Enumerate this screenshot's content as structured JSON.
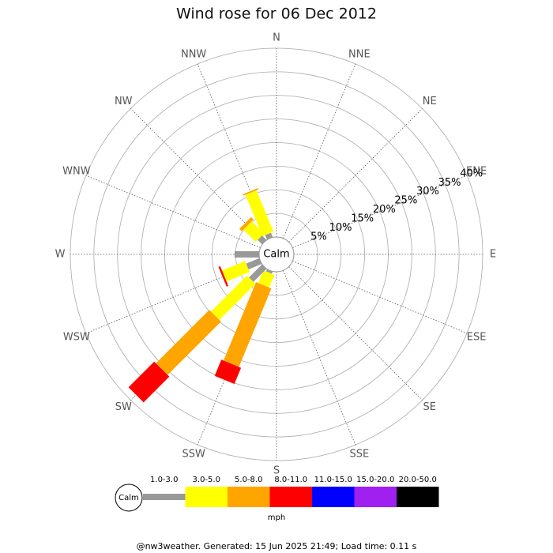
{
  "chart_data": {
    "type": "windrose",
    "title": "Wind rose for 06 Dec 2012",
    "directions": [
      "N",
      "NNE",
      "NE",
      "ENE",
      "E",
      "ESE",
      "SE",
      "SSE",
      "S",
      "SSW",
      "SW",
      "WSW",
      "W",
      "WNW",
      "NW",
      "NNW"
    ],
    "calm_label": "Calm",
    "unit": "mph",
    "rlim": [
      0,
      40
    ],
    "rticks": [
      {
        "value": 5,
        "label": "5%"
      },
      {
        "value": 10,
        "label": "10%"
      },
      {
        "value": 15,
        "label": "15%"
      },
      {
        "value": 20,
        "label": "20%"
      },
      {
        "value": 25,
        "label": "25%"
      },
      {
        "value": 30,
        "label": "30%"
      },
      {
        "value": 35,
        "label": "35%"
      },
      {
        "value": 40,
        "label": "40%"
      }
    ],
    "series": [
      {
        "name": "1.0-3.0",
        "color": "#999999",
        "values": [
          0,
          0,
          0,
          0,
          0,
          0,
          0,
          0,
          0,
          0.5,
          3.9,
          3,
          5.2,
          0,
          1.3,
          1
        ]
      },
      {
        "name": "3.0-5.0",
        "color": "#ffff00",
        "values": [
          0,
          0,
          0,
          0,
          0,
          0,
          0,
          0,
          0,
          2.9,
          10.8,
          5.3,
          0,
          0,
          3.7,
          9.5
        ]
      },
      {
        "name": "5.0-8.0",
        "color": "#ffa500",
        "values": [
          0,
          0,
          0,
          0,
          0,
          0,
          0,
          0,
          0,
          18,
          16,
          0,
          0,
          0,
          0.7,
          0.3
        ]
      },
      {
        "name": "8.0-11.0",
        "color": "#ff0000",
        "values": [
          0,
          0,
          0,
          0,
          0,
          0,
          0,
          0,
          0,
          3.7,
          7.7,
          0.4,
          0,
          0,
          0,
          0
        ]
      },
      {
        "name": "11.0-15.0",
        "color": "#0000ff",
        "values": [
          0,
          0,
          0,
          0,
          0,
          0,
          0,
          0,
          0,
          0,
          0,
          0,
          0,
          0,
          0,
          0
        ]
      },
      {
        "name": "15.0-20.0",
        "color": "#a020f0",
        "values": [
          0,
          0,
          0,
          0,
          0,
          0,
          0,
          0,
          0,
          0,
          0,
          0,
          0,
          0,
          0,
          0
        ]
      },
      {
        "name": "20.0-50.0",
        "color": "#000000",
        "values": [
          0,
          0,
          0,
          0,
          0,
          0,
          0,
          0,
          0,
          0,
          0,
          0,
          0,
          0,
          0,
          0
        ]
      }
    ],
    "footer": "@nw3weather. Generated: 15 Jun 2025 21:49; Load time: 0.11 s"
  }
}
